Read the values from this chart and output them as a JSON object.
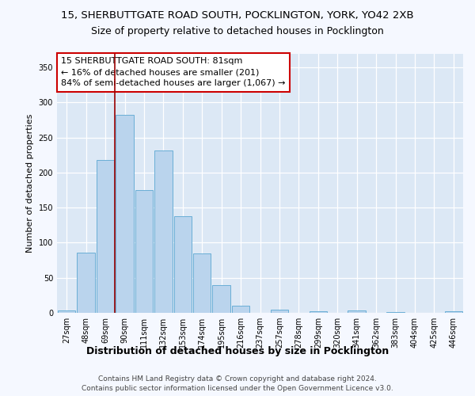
{
  "title1": "15, SHERBUTTGATE ROAD SOUTH, POCKLINGTON, YORK, YO42 2XB",
  "title2": "Size of property relative to detached houses in Pocklington",
  "xlabel": "Distribution of detached houses by size in Pocklington",
  "ylabel": "Number of detached properties",
  "categories": [
    "27sqm",
    "48sqm",
    "69sqm",
    "90sqm",
    "111sqm",
    "132sqm",
    "153sqm",
    "174sqm",
    "195sqm",
    "216sqm",
    "237sqm",
    "257sqm",
    "278sqm",
    "299sqm",
    "320sqm",
    "341sqm",
    "362sqm",
    "383sqm",
    "404sqm",
    "425sqm",
    "446sqm"
  ],
  "values": [
    3,
    86,
    218,
    283,
    175,
    232,
    138,
    85,
    40,
    10,
    0,
    5,
    0,
    2,
    0,
    3,
    0,
    1,
    0,
    0,
    2
  ],
  "bar_color": "#bad4ed",
  "bar_edge_color": "#6aaed6",
  "vline_x_index": 3,
  "vline_color": "#990000",
  "ylim": [
    0,
    370
  ],
  "yticks": [
    0,
    50,
    100,
    150,
    200,
    250,
    300,
    350
  ],
  "annotation_text": "15 SHERBUTTGATE ROAD SOUTH: 81sqm\n← 16% of detached houses are smaller (201)\n84% of semi-detached houses are larger (1,067) →",
  "annotation_box_facecolor": "#ffffff",
  "annotation_box_edgecolor": "#cc0000",
  "footer1": "Contains HM Land Registry data © Crown copyright and database right 2024.",
  "footer2": "Contains public sector information licensed under the Open Government Licence v3.0.",
  "fig_facecolor": "#f5f8ff",
  "ax_facecolor": "#dce8f5",
  "grid_color": "#ffffff",
  "title1_fontsize": 9.5,
  "title2_fontsize": 9,
  "xlabel_fontsize": 9,
  "ylabel_fontsize": 8,
  "tick_fontsize": 7,
  "annotation_fontsize": 8,
  "footer_fontsize": 6.5
}
